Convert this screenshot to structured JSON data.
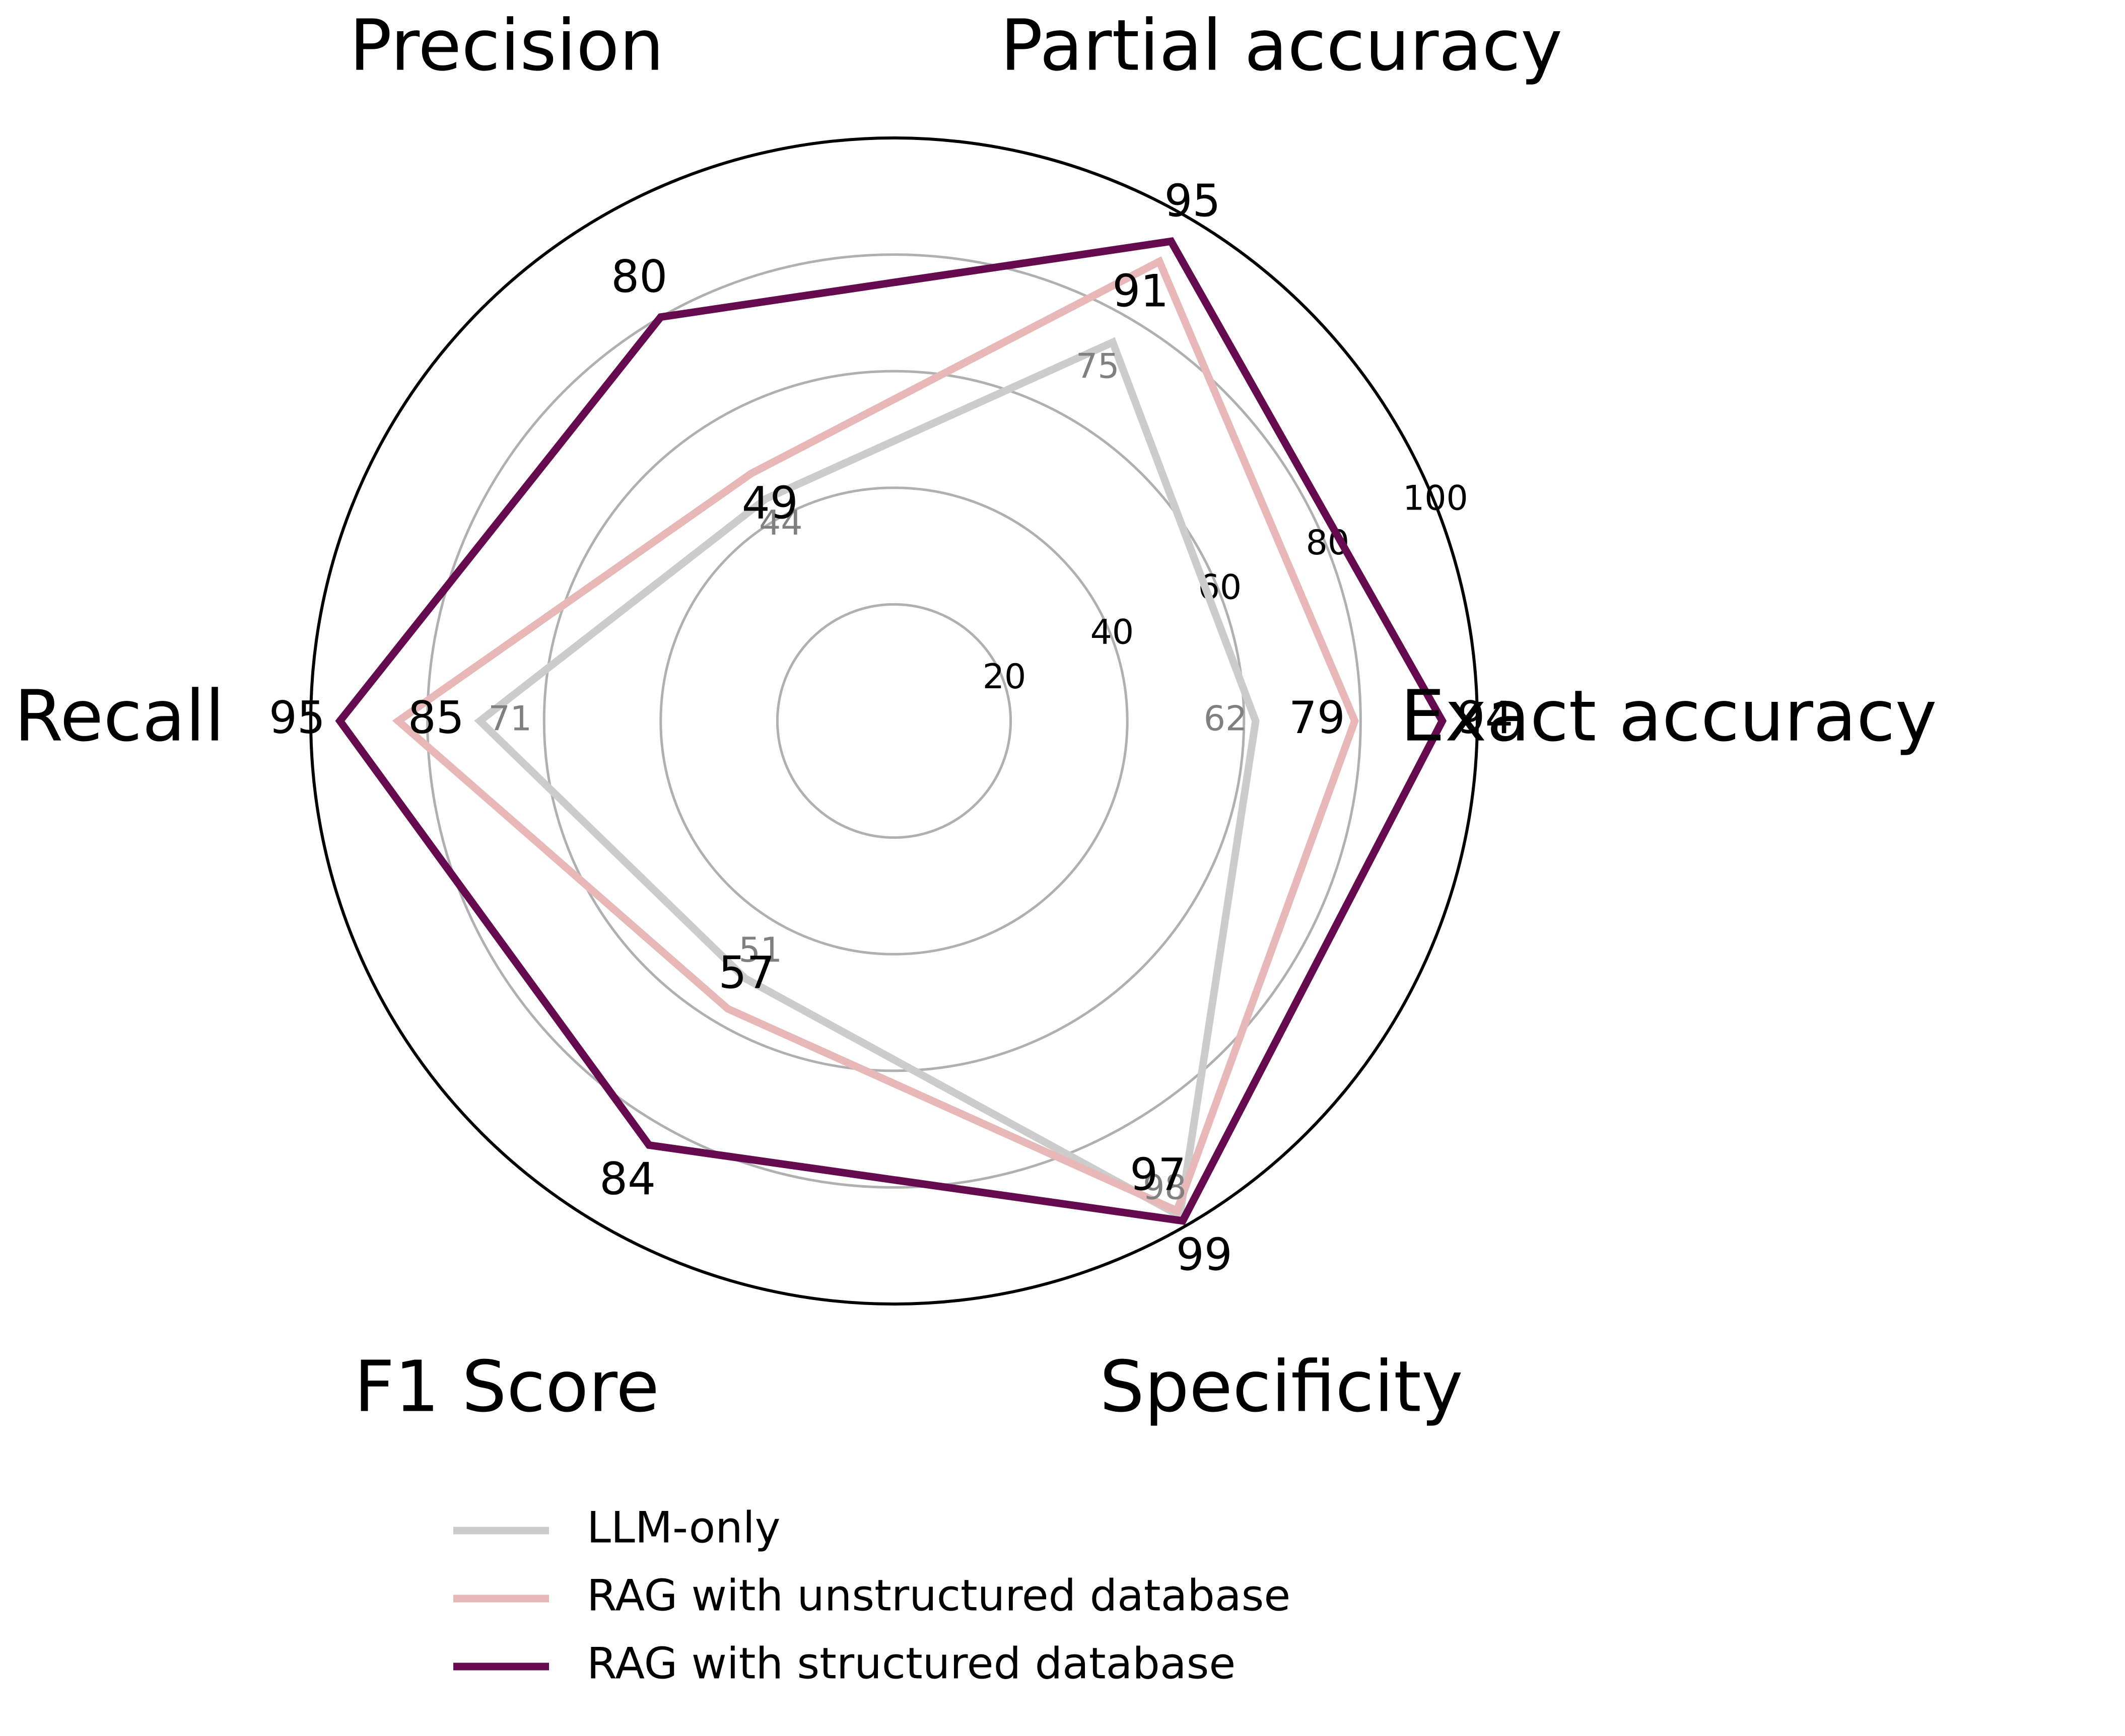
{
  "chart_data": {
    "type": "radar",
    "axes": [
      "Exact accuracy",
      "Partial accuracy",
      "Precision",
      "Recall",
      "F1 Score",
      "Specificity"
    ],
    "rlim": [
      0,
      100
    ],
    "rticks": [
      20,
      40,
      60,
      80,
      100
    ],
    "rtick_labels": [
      "20",
      "40",
      "60",
      "80",
      "100"
    ],
    "grid": true,
    "series": [
      {
        "name": "LLM-only",
        "color": "#cccccc",
        "values": [
          62,
          75,
          44,
          71,
          51,
          98
        ]
      },
      {
        "name": "RAG with unstructured database",
        "color": "#e8b8b8",
        "values": [
          79,
          91,
          49,
          85,
          57,
          97
        ]
      },
      {
        "name": "RAG with structured database",
        "color": "#660a50",
        "values": [
          94,
          95,
          80,
          95,
          84,
          99
        ]
      }
    ],
    "legend": {
      "position": "bottom-center"
    }
  }
}
